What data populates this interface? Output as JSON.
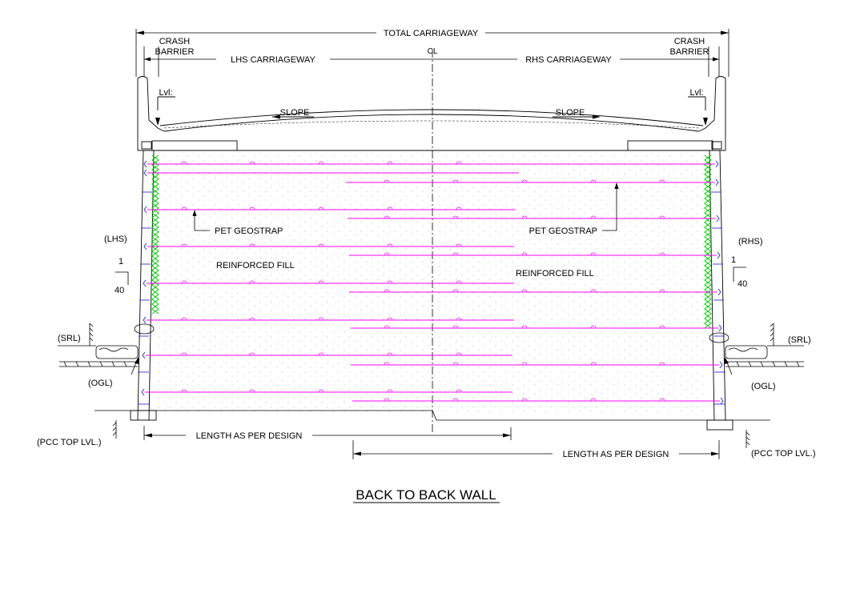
{
  "labels": {
    "total_carriageway": "TOTAL CARRIAGEWAY",
    "crash_barrier_line1": "CRASH",
    "crash_barrier_line2": "BARRIER",
    "lhs_carriageway": "LHS CARRIAGEWAY",
    "rhs_carriageway": "RHS CARRIAGEWAY",
    "centerline": "CL",
    "lvl": "Lvl:",
    "slope": "SLOPE",
    "pet_geostrap": "PET GEOSTRAP",
    "reinforced_fill": "REINFORCED FILL",
    "lhs": "(LHS)",
    "rhs": "(RHS)",
    "batter_rise": "1",
    "batter_run": "40",
    "srl": "(SRL)",
    "ogl": "(OGL)",
    "pcc_top_lvl": "(PCC TOP LVL.)",
    "length_as_per_design": "LENGTH AS PER DESIGN"
  },
  "title": "BACK TO BACK WALL",
  "colors": {
    "line": "#000000",
    "geostrap": "#ff00ff",
    "wall_panel": "#3333cc",
    "friction_mesh": "#00cc00",
    "fill_dots": "#9aa0b8"
  }
}
